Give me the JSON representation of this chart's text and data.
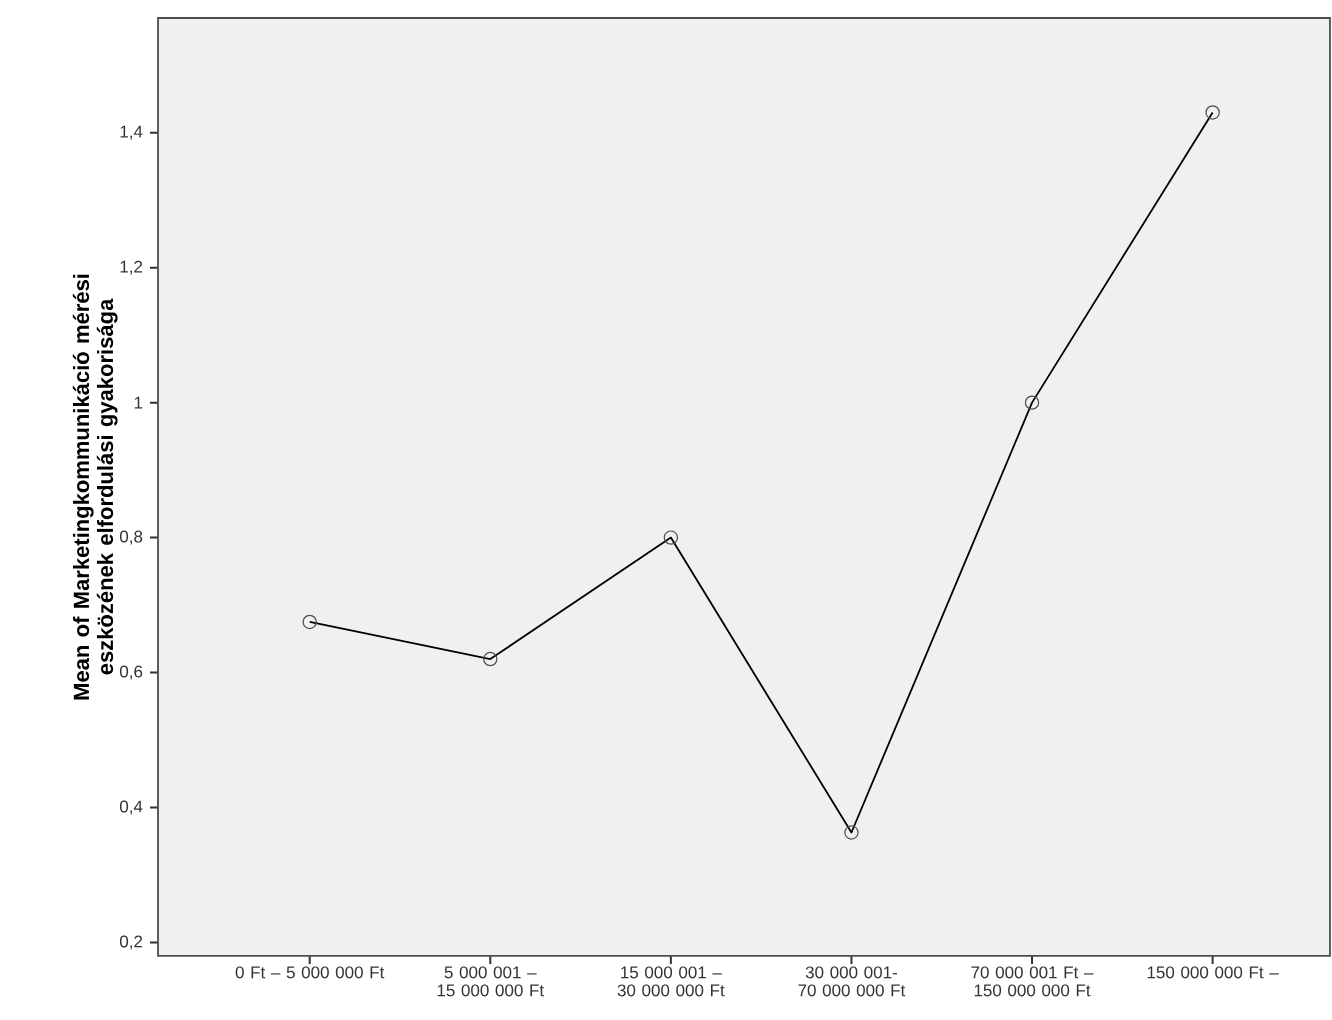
{
  "chart_data": {
    "type": "line",
    "ylabel": "Mean of Marketingkommunikáció mérési eszközének elfordulási gyakorisága",
    "categories": [
      "0 Ft – 5 000 000 Ft",
      "5 000 001 – 15 000 000 Ft",
      "15 000 001 – 30 000 000 Ft",
      "30 000 001- 70 000 000 Ft",
      "70 000 001 Ft – 150 000 000 Ft",
      "150 000 000 Ft –"
    ],
    "values": [
      0.675,
      0.62,
      0.8,
      0.363,
      1.0,
      1.43
    ],
    "color": "#000000",
    "marker": "circle",
    "ylim": [
      0.18,
      1.57
    ],
    "yticks": [
      {
        "value": 0.2,
        "label": "0,2"
      },
      {
        "value": 0.4,
        "label": "0,4"
      },
      {
        "value": 0.6,
        "label": "0,6"
      },
      {
        "value": 0.8,
        "label": "0,8"
      },
      1,
      {
        "value": 1.2,
        "label": "1,2"
      },
      {
        "value": 1.4,
        "label": "1,4"
      }
    ],
    "grid": false
  }
}
